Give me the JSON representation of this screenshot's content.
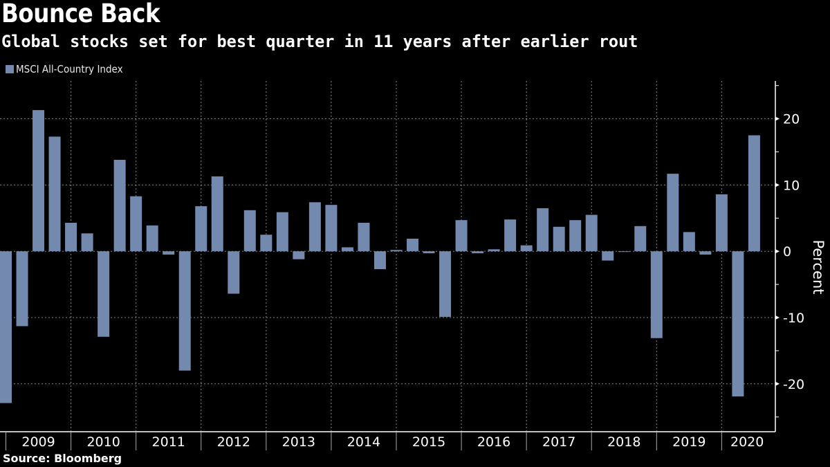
{
  "header": {
    "title": "Bounce Back",
    "subtitle": "Global stocks set for best quarter in 11 years after earlier rout"
  },
  "footer": {
    "source": "Source: Bloomberg"
  },
  "chart_data": {
    "type": "bar",
    "title": "Bounce Back",
    "subtitle": "Global stocks set for best quarter in 11 years after earlier rout",
    "xlabel": "",
    "ylabel": "Percent",
    "ylim": [
      -27,
      25.5
    ],
    "yticks": [
      -20,
      -10,
      0,
      10,
      20
    ],
    "ytick_labels": [
      "-20",
      "-10",
      "0",
      "10",
      "20"
    ],
    "y_axis_position": "right",
    "grid": true,
    "legend": {
      "position": "top-left",
      "entries": [
        "MSCI All-Country Index"
      ]
    },
    "bar_color": "#7389ae",
    "x_tick_labels": [
      "2009",
      "2010",
      "2011",
      "2012",
      "2013",
      "2014",
      "2015",
      "2016",
      "2017",
      "2018",
      "2019",
      "2020"
    ],
    "categories": [
      "2008-Q4",
      "2009-Q1",
      "2009-Q2",
      "2009-Q3",
      "2009-Q4",
      "2010-Q1",
      "2010-Q2",
      "2010-Q3",
      "2010-Q4",
      "2011-Q1",
      "2011-Q2",
      "2011-Q3",
      "2011-Q4",
      "2012-Q1",
      "2012-Q2",
      "2012-Q3",
      "2012-Q4",
      "2013-Q1",
      "2013-Q2",
      "2013-Q3",
      "2013-Q4",
      "2014-Q1",
      "2014-Q2",
      "2014-Q3",
      "2014-Q4",
      "2015-Q1",
      "2015-Q2",
      "2015-Q3",
      "2015-Q4",
      "2016-Q1",
      "2016-Q2",
      "2016-Q3",
      "2016-Q4",
      "2017-Q1",
      "2017-Q2",
      "2017-Q3",
      "2017-Q4",
      "2018-Q1",
      "2018-Q2",
      "2018-Q3",
      "2018-Q4",
      "2019-Q1",
      "2019-Q2",
      "2019-Q3",
      "2019-Q4",
      "2020-Q1",
      "2020-Q2"
    ],
    "series": [
      {
        "name": "MSCI All-Country Index",
        "values": [
          -22.9,
          -11.3,
          21.3,
          17.3,
          4.3,
          2.7,
          -12.9,
          13.8,
          8.3,
          3.9,
          -0.5,
          -18.0,
          6.8,
          11.3,
          -6.4,
          6.2,
          2.5,
          5.9,
          -1.2,
          7.4,
          7.0,
          0.6,
          4.3,
          -2.7,
          0.2,
          1.9,
          -0.3,
          -9.9,
          4.7,
          -0.3,
          0.3,
          4.8,
          0.9,
          6.5,
          3.7,
          4.7,
          5.5,
          -1.4,
          -0.1,
          3.8,
          -13.1,
          11.7,
          2.9,
          -0.5,
          8.6,
          -21.9,
          17.5
        ]
      }
    ]
  }
}
